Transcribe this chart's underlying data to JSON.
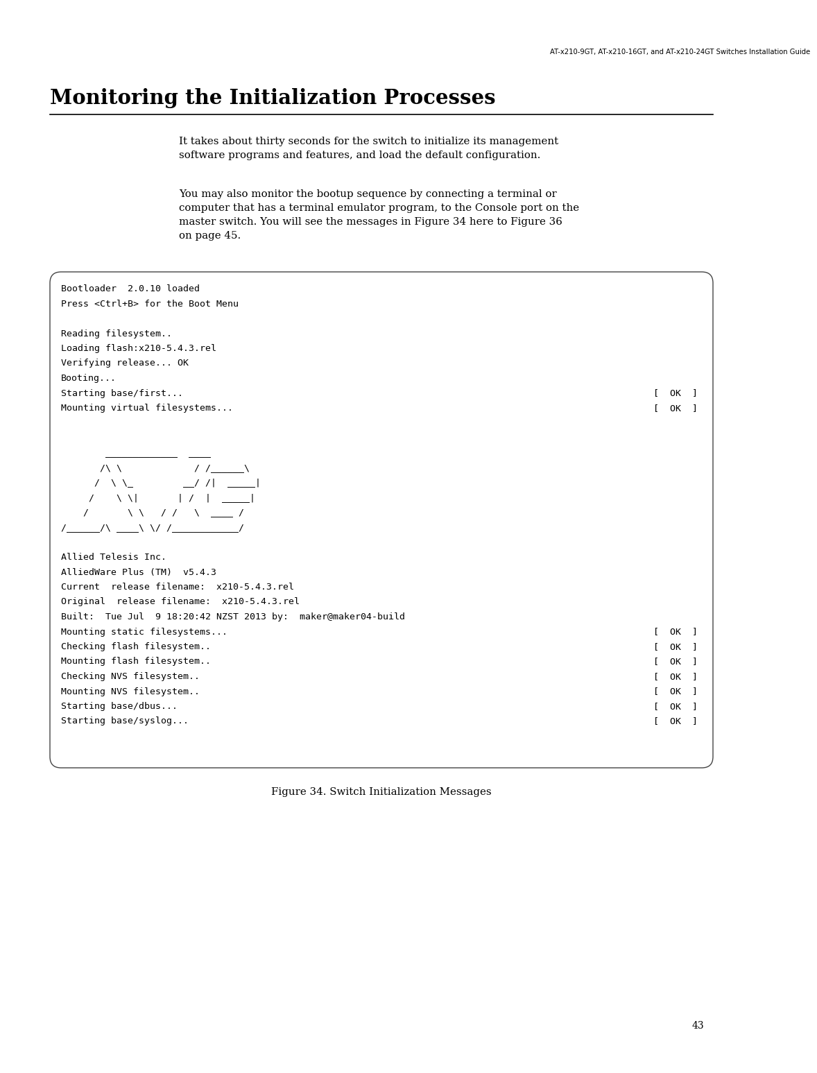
{
  "header_text": "AT-x210-9GT, AT-x210-16GT, and AT-x210-24GT Switches Installation Guide",
  "title": "Monitoring the Initialization Processes",
  "body_para1": "It takes about thirty seconds for the switch to initialize its management\nsoftware programs and features, and load the default configuration.",
  "body_para2": "You may also monitor the bootup sequence by connecting a terminal or\ncomputer that has a terminal emulator program, to the Console port on the\nmaster switch. You will see the messages in Figure 34 here to Figure 36\non page 45.",
  "terminal_lines": [
    [
      "Bootloader  2.0.10 loaded",
      false
    ],
    [
      "Press <Ctrl+B> for the Boot Menu",
      false
    ],
    [
      "",
      false
    ],
    [
      "Reading filesystem..",
      false
    ],
    [
      "Loading flash:x210-5.4.3.rel",
      false
    ],
    [
      "Verifying release... OK",
      false
    ],
    [
      "Booting...",
      false
    ],
    [
      "Starting base/first...",
      true
    ],
    [
      "Mounting virtual filesystems...",
      true
    ],
    [
      "",
      false
    ],
    [
      "",
      false
    ],
    [
      "        _____________  ____",
      false
    ],
    [
      "       /\\ \\             / /______\\",
      false
    ],
    [
      "      /  \\ \\_         __/ /|  _____|",
      false
    ],
    [
      "     /    \\ \\|       | /  |  _____|",
      false
    ],
    [
      "    /       \\ \\   / /   \\  ____ /",
      false
    ],
    [
      "/______/\\ ____\\ \\/ /____________/",
      false
    ],
    [
      "",
      false
    ],
    [
      "Allied Telesis Inc.",
      false
    ],
    [
      "AlliedWare Plus (TM)  v5.4.3",
      false
    ],
    [
      "Current  release filename:  x210-5.4.3.rel",
      false
    ],
    [
      "Original  release filename:  x210-5.4.3.rel",
      false
    ],
    [
      "Built:  Tue Jul  9 18:20:42 NZST 2013 by:  maker@maker04-build",
      false
    ],
    [
      "Mounting static filesystems...",
      true
    ],
    [
      "Checking flash filesystem..",
      true
    ],
    [
      "Mounting flash filesystem..",
      true
    ],
    [
      "Checking NVS filesystem..",
      true
    ],
    [
      "Mounting NVS filesystem..",
      true
    ],
    [
      "Starting base/dbus...",
      true
    ],
    [
      "Starting base/syslog...",
      true
    ]
  ],
  "figure_caption": "Figure 34. Switch Initialization Messages",
  "page_number": "43",
  "bg_color": "#ffffff",
  "text_color": "#000000"
}
